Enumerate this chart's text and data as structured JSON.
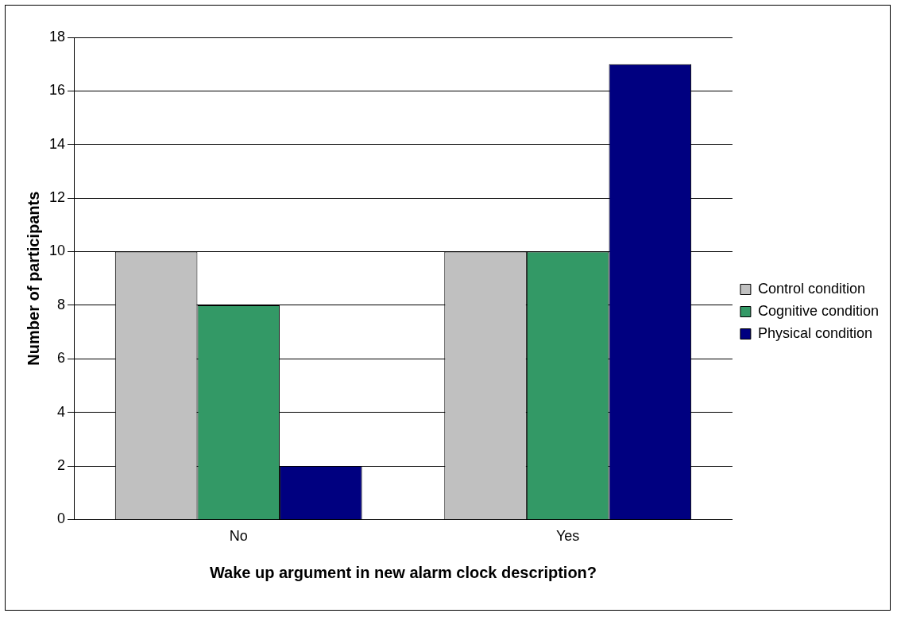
{
  "chart_data": {
    "type": "bar",
    "xlabel": "Wake up argument in new alarm clock description?",
    "ylabel": "Number of participants",
    "categories": [
      "No",
      "Yes"
    ],
    "series": [
      {
        "name": "Control condition",
        "color": "#c0c0c0",
        "values": [
          10,
          10
        ]
      },
      {
        "name": "Cognitive condition",
        "color": "#339966",
        "values": [
          8,
          10
        ]
      },
      {
        "name": "Physical condition",
        "color": "#000080",
        "values": [
          2,
          17
        ]
      }
    ],
    "ylim": [
      0,
      18
    ],
    "yticks": [
      0,
      2,
      4,
      6,
      8,
      10,
      12,
      14,
      16,
      18
    ],
    "grid": "y",
    "legend": "right"
  }
}
